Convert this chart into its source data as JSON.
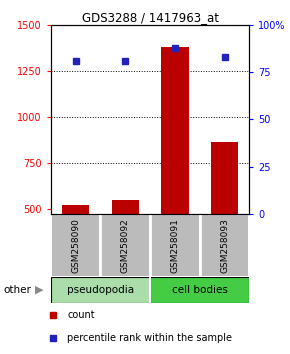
{
  "title": "GDS3288 / 1417963_at",
  "samples": [
    "GSM258090",
    "GSM258092",
    "GSM258091",
    "GSM258093"
  ],
  "groups": [
    "pseudopodia",
    "pseudopodia",
    "cell bodies",
    "cell bodies"
  ],
  "bar_values": [
    520,
    545,
    1380,
    860
  ],
  "dot_values_pct": [
    81,
    81,
    88,
    83
  ],
  "ylim_left": [
    470,
    1500
  ],
  "ylim_right": [
    0,
    100
  ],
  "yticks_left": [
    500,
    750,
    1000,
    1250,
    1500
  ],
  "yticks_right": [
    0,
    25,
    50,
    75,
    100
  ],
  "bar_color": "#bb0000",
  "dot_color": "#2222bb",
  "group_colors": {
    "pseudopodia": "#aaddaa",
    "cell bodies": "#44cc44"
  },
  "sample_label_bg": "#bbbbbb",
  "bg_color": "#ffffff"
}
